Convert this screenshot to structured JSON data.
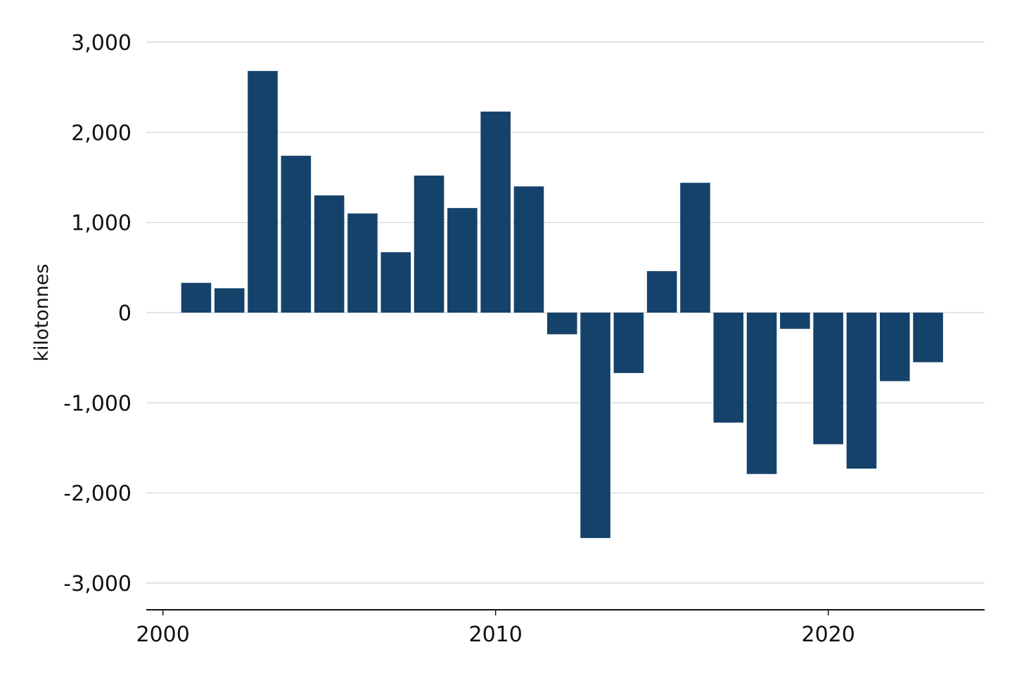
{
  "chart_data": {
    "type": "bar",
    "title": "",
    "xlabel": "",
    "ylabel": "kilotonnes",
    "x": [
      2001,
      2002,
      2003,
      2004,
      2005,
      2006,
      2007,
      2008,
      2009,
      2010,
      2011,
      2012,
      2013,
      2014,
      2015,
      2016,
      2017,
      2018,
      2019,
      2020,
      2021,
      2022,
      2023
    ],
    "values": [
      330,
      270,
      2680,
      1740,
      1300,
      1100,
      670,
      1520,
      1160,
      2230,
      1400,
      -240,
      -2500,
      -670,
      460,
      1440,
      -1220,
      -1790,
      -180,
      -1460,
      -1730,
      -760,
      -550
    ],
    "ylim": [
      -3300,
      3000
    ],
    "yticks": [
      3000,
      2000,
      1000,
      0,
      -1000,
      -2000,
      -3000
    ],
    "ytick_labels": [
      "3,000",
      "2,000",
      "1,000",
      "0",
      "-1,000",
      "-2,000",
      "-3,000"
    ],
    "xlim": [
      1999.5,
      2024.7
    ],
    "xticks": [
      2000,
      2010,
      2020
    ],
    "xtick_labels": [
      "2000",
      "2010",
      "2020"
    ],
    "grid": true,
    "bar_color": "#15426b"
  }
}
